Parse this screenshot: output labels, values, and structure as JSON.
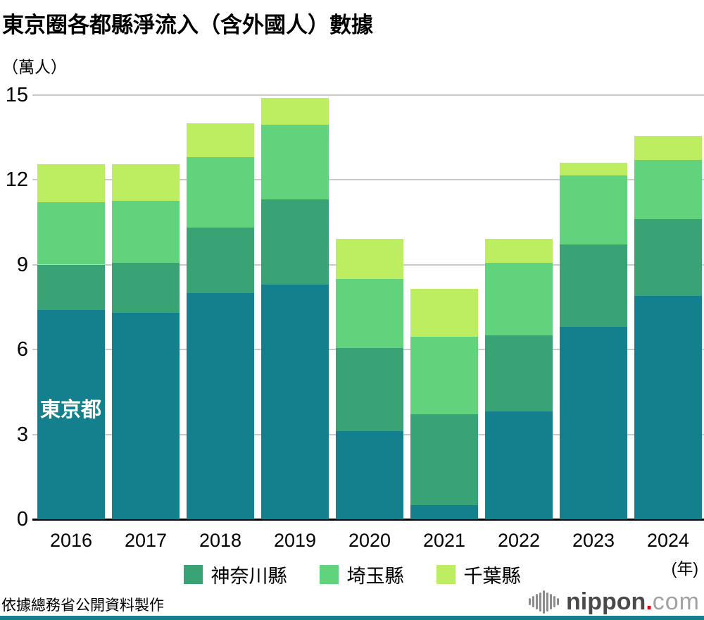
{
  "title": "東京圈各都縣淨流入（含外國人）數據",
  "unit_label": "（萬人）",
  "x_axis_year_suffix": "(年)",
  "tokyo_inline_label": "東京都",
  "source": "依據總務省公開資料製作",
  "logo": {
    "icon": "soundwave-icon",
    "bold": "nippon",
    "dot": ".",
    "light": "com"
  },
  "colors": {
    "tokyo": "#15808d",
    "kanagawa": "#3aa376",
    "saitama": "#62d37d",
    "chiba": "#bdee62",
    "gridline": "#cacaca",
    "axis": "#000000",
    "logo_red": "#e60012",
    "bottom_strip": "#15808d"
  },
  "chart_data": {
    "type": "bar",
    "stacked": true,
    "categories": [
      "2016",
      "2017",
      "2018",
      "2019",
      "2020",
      "2021",
      "2022",
      "2023",
      "2024"
    ],
    "series": [
      {
        "name": "東京都",
        "color": "#15808d",
        "values": [
          7.4,
          7.3,
          8.0,
          8.3,
          3.1,
          0.5,
          3.8,
          6.8,
          7.9
        ]
      },
      {
        "name": "神奈川縣",
        "color": "#3aa376",
        "values": [
          1.6,
          1.75,
          2.3,
          3.0,
          2.95,
          3.2,
          2.7,
          2.9,
          2.7
        ]
      },
      {
        "name": "埼玉縣",
        "color": "#62d37d",
        "values": [
          2.2,
          2.2,
          2.5,
          2.65,
          2.45,
          2.75,
          2.55,
          2.45,
          2.1
        ]
      },
      {
        "name": "千葉縣",
        "color": "#bdee62",
        "values": [
          1.35,
          1.3,
          1.2,
          0.95,
          1.4,
          1.7,
          0.85,
          0.45,
          0.85
        ]
      }
    ],
    "totals": [
      12.55,
      12.55,
      14.0,
      14.9,
      9.9,
      8.15,
      9.9,
      12.6,
      13.55
    ],
    "title": "東京圈各都縣淨流入（含外國人）數據",
    "xlabel": "年",
    "ylabel": "萬人",
    "ylim": [
      0,
      15
    ],
    "yticks": [
      0,
      3,
      6,
      9,
      12,
      15
    ],
    "grid": true,
    "legend_entries": [
      "神奈川縣",
      "埼玉縣",
      "千葉縣"
    ],
    "legend_position": "bottom-center",
    "inline_label": {
      "text": "東京都",
      "series": "東京都",
      "category": "2016"
    }
  }
}
